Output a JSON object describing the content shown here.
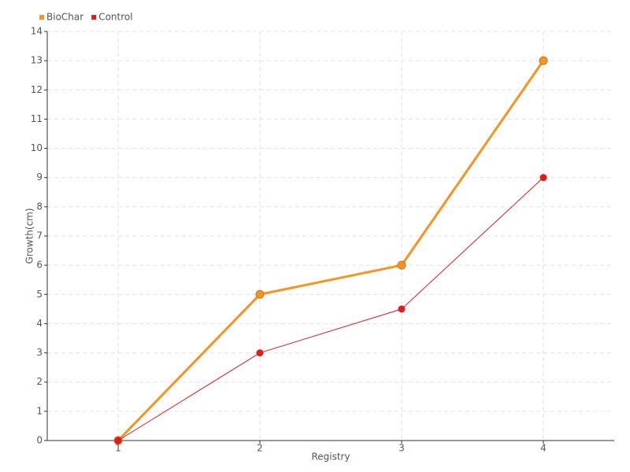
{
  "chart_data": {
    "type": "line",
    "x_label": "Registry",
    "y_label": "Growth(cm)",
    "x": [
      1,
      2,
      3,
      4
    ],
    "xlim": [
      0.5,
      4.5
    ],
    "xticks": [
      1,
      2,
      3,
      4
    ],
    "ylim": [
      0,
      14
    ],
    "yticks": [
      0,
      1,
      2,
      3,
      4,
      5,
      6,
      7,
      8,
      9,
      10,
      11,
      12,
      13,
      14
    ],
    "grid": true,
    "legend": "top-left",
    "series": [
      {
        "name": "BioChar",
        "color": "#f7931e",
        "values": [
          0,
          5,
          6,
          13
        ]
      },
      {
        "name": "Control",
        "color": "#e31a1c",
        "values": [
          0,
          3,
          4.5,
          9
        ]
      }
    ]
  }
}
